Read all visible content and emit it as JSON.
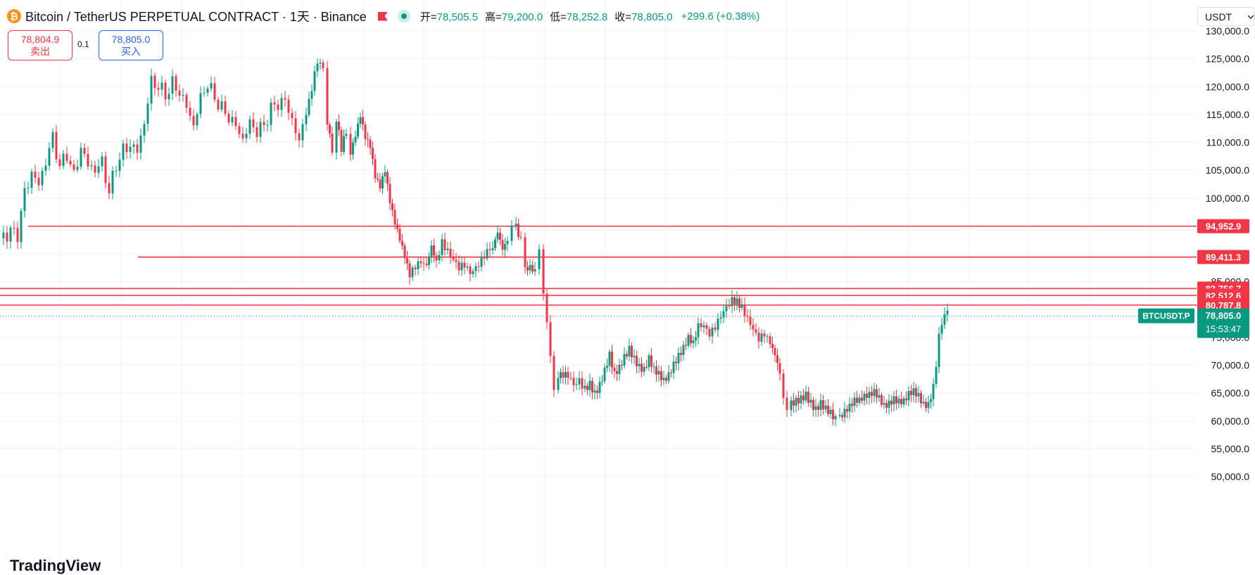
{
  "header": {
    "coin_symbol": "₿",
    "title": "Bitcoin / TetherUS PERPETUAL CONTRACT · 1天 · Binance",
    "ohlc": {
      "open_label": "开=",
      "open": "78,505.5",
      "high_label": "高=",
      "high": "79,200.0",
      "low_label": "低=",
      "low": "78,252.8",
      "close_label": "收=",
      "close": "78,805.0",
      "change": "+299.6 (+0.38%)"
    }
  },
  "trade": {
    "sell_price": "78,804.9",
    "sell_label": "卖出",
    "quantity": "0.1",
    "buy_price": "78,805.0",
    "buy_label": "买入"
  },
  "currency_select": {
    "value": "USDT",
    "icon": "chevron-down-icon"
  },
  "logo_text": "TradingView",
  "colors": {
    "up": "#089981",
    "down": "#f23645",
    "line": "#f23645",
    "grid": "#f0f3fa"
  },
  "chart_data": {
    "type": "candlestick",
    "symbol": "BTCUSDT.P",
    "interval": "1天",
    "ylim": [
      48000,
      132000
    ],
    "y_ticks": [
      50000,
      55000,
      60000,
      65000,
      70000,
      75000,
      80000,
      85000,
      90000,
      95000,
      100000,
      105000,
      110000,
      115000,
      120000,
      125000,
      130000
    ],
    "y_tick_labels": [
      "50,000.0",
      "55,000.0",
      "60,000.0",
      "65,000.0",
      "70,000.0",
      "75,000.0",
      "80,000.0",
      "85,000.0",
      "90,000.0",
      "95,000.0",
      "100,000.0",
      "105,000.0",
      "110,000.0",
      "115,000.0",
      "120,000.0",
      "125,000.0",
      "130,000.0"
    ],
    "price_path": [
      [
        0,
        92800
      ],
      [
        15,
        94000
      ],
      [
        25,
        93500
      ],
      [
        35,
        101000
      ],
      [
        45,
        104500
      ],
      [
        55,
        102500
      ],
      [
        65,
        106500
      ],
      [
        75,
        111000
      ],
      [
        85,
        105500
      ],
      [
        95,
        108000
      ],
      [
        105,
        104000
      ],
      [
        115,
        109000
      ],
      [
        125,
        106000
      ],
      [
        135,
        105000
      ],
      [
        145,
        106500
      ],
      [
        155,
        101000
      ],
      [
        165,
        106000
      ],
      [
        175,
        108500
      ],
      [
        185,
        109500
      ],
      [
        195,
        108500
      ],
      [
        205,
        113500
      ],
      [
        215,
        121000
      ],
      [
        225,
        120000
      ],
      [
        235,
        118500
      ],
      [
        245,
        120500
      ],
      [
        255,
        119000
      ],
      [
        265,
        116500
      ],
      [
        275,
        113000
      ],
      [
        285,
        118000
      ],
      [
        295,
        120500
      ],
      [
        305,
        118000
      ],
      [
        315,
        116000
      ],
      [
        325,
        114500
      ],
      [
        335,
        113000
      ],
      [
        345,
        110500
      ],
      [
        355,
        113500
      ],
      [
        365,
        112000
      ],
      [
        375,
        113000
      ],
      [
        385,
        116000
      ],
      [
        395,
        117000
      ],
      [
        405,
        117500
      ],
      [
        415,
        114000
      ],
      [
        425,
        110000
      ],
      [
        435,
        116000
      ],
      [
        443,
        120500
      ],
      [
        451,
        124500
      ],
      [
        459,
        122500
      ],
      [
        465,
        114500
      ],
      [
        472,
        109500
      ],
      [
        478,
        113500
      ],
      [
        485,
        108000
      ],
      [
        492,
        111500
      ],
      [
        498,
        109000
      ],
      [
        505,
        112000
      ],
      [
        512,
        115000
      ],
      [
        519,
        110500
      ],
      [
        526,
        108500
      ],
      [
        533,
        103000
      ],
      [
        540,
        101500
      ],
      [
        547,
        105000
      ],
      [
        554,
        100000
      ],
      [
        561,
        96500
      ],
      [
        568,
        93500
      ],
      [
        575,
        90000
      ],
      [
        582,
        86000
      ],
      [
        590,
        88500
      ],
      [
        598,
        89500
      ],
      [
        606,
        88000
      ],
      [
        613,
        92000
      ],
      [
        620,
        89500
      ],
      [
        628,
        92500
      ],
      [
        636,
        90000
      ],
      [
        644,
        88000
      ],
      [
        652,
        87000
      ],
      [
        660,
        88500
      ],
      [
        668,
        87500
      ],
      [
        676,
        88000
      ],
      [
        684,
        88500
      ],
      [
        692,
        89500
      ],
      [
        700,
        90500
      ],
      [
        707,
        93000
      ],
      [
        714,
        90000
      ],
      [
        721,
        92000
      ],
      [
        727,
        95500
      ],
      [
        733,
        94000
      ],
      [
        740,
        91500
      ],
      [
        746,
        88000
      ],
      [
        753,
        88500
      ],
      [
        760,
        87500
      ],
      [
        766,
        90000
      ],
      [
        772,
        84000
      ],
      [
        777,
        77000
      ],
      [
        782,
        71500
      ],
      [
        787,
        66000
      ],
      [
        793,
        68500
      ],
      [
        800,
        68000
      ],
      [
        807,
        67500
      ],
      [
        815,
        66500
      ],
      [
        823,
        68000
      ],
      [
        831,
        66500
      ],
      [
        838,
        67500
      ],
      [
        845,
        65500
      ],
      [
        852,
        66500
      ],
      [
        859,
        68500
      ],
      [
        866,
        71000
      ],
      [
        873,
        67500
      ],
      [
        880,
        69000
      ],
      [
        887,
        71500
      ],
      [
        894,
        73500
      ],
      [
        901,
        72000
      ],
      [
        908,
        70500
      ],
      [
        915,
        69500
      ],
      [
        922,
        71000
      ],
      [
        929,
        68500
      ],
      [
        936,
        67500
      ],
      [
        943,
        66500
      ],
      [
        950,
        68000
      ],
      [
        957,
        70500
      ],
      [
        964,
        72500
      ],
      [
        971,
        74000
      ],
      [
        978,
        75500
      ],
      [
        985,
        74000
      ],
      [
        992,
        76500
      ],
      [
        1000,
        77500
      ],
      [
        1008,
        76500
      ],
      [
        1016,
        77500
      ],
      [
        1024,
        78500
      ],
      [
        1032,
        79500
      ],
      [
        1040,
        81000
      ],
      [
        1047,
        80500
      ],
      [
        1054,
        79500
      ],
      [
        1062,
        77500
      ],
      [
        1070,
        76500
      ],
      [
        1078,
        75500
      ],
      [
        1086,
        76500
      ],
      [
        1094,
        74000
      ],
      [
        1101,
        72500
      ],
      [
        1108,
        69500
      ],
      [
        1113,
        64000
      ],
      [
        1118,
        61500
      ],
      [
        1124,
        62500
      ],
      [
        1131,
        63500
      ],
      [
        1138,
        64500
      ],
      [
        1145,
        65500
      ],
      [
        1152,
        64000
      ],
      [
        1159,
        62500
      ],
      [
        1166,
        63000
      ],
      [
        1173,
        61500
      ],
      [
        1180,
        60500
      ],
      [
        1187,
        59500
      ],
      [
        1193,
        61500
      ],
      [
        1200,
        62500
      ],
      [
        1207,
        63000
      ],
      [
        1214,
        63500
      ],
      [
        1221,
        63000
      ],
      [
        1228,
        63500
      ],
      [
        1235,
        64000
      ],
      [
        1242,
        65000
      ],
      [
        1249,
        64500
      ],
      [
        1256,
        63500
      ],
      [
        1263,
        64000
      ],
      [
        1270,
        64500
      ],
      [
        1277,
        63500
      ],
      [
        1284,
        63000
      ],
      [
        1291,
        64000
      ],
      [
        1298,
        64500
      ],
      [
        1305,
        64000
      ],
      [
        1312,
        63000
      ],
      [
        1319,
        63500
      ],
      [
        1326,
        67000
      ],
      [
        1330,
        71000
      ],
      [
        1334,
        75500
      ],
      [
        1338,
        77500
      ],
      [
        1342,
        78500
      ],
      [
        1346,
        78805
      ]
    ],
    "horizontal_lines": [
      {
        "price": 94952.9,
        "label": "94,952.9"
      },
      {
        "price": 89411.3,
        "label": "89,411.3"
      },
      {
        "price": 83756.7,
        "label": "83,756.7"
      },
      {
        "price": 82512.6,
        "label": "82,512.6"
      },
      {
        "price": 80787.8,
        "label": "80,787.8"
      }
    ],
    "last_price": {
      "price": 78805.0,
      "label": "78,805.0",
      "countdown": "15:53:47",
      "symbol_tag": "BTCUSDT.P"
    },
    "grid": true
  }
}
